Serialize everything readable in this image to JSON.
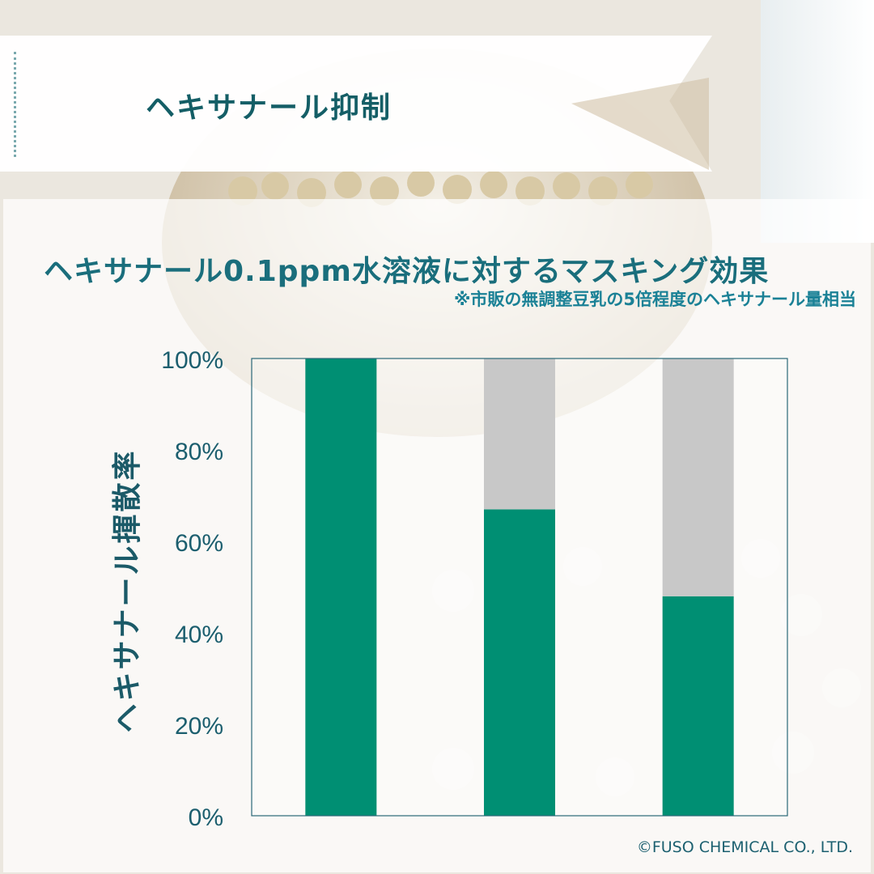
{
  "header": {
    "title": "ヘキサナール抑制"
  },
  "colors": {
    "accent": "#008f73",
    "remainder": "#c8c8c8",
    "title": "#1a6e7c",
    "frame": "#2a6878"
  },
  "chart_data": {
    "type": "bar",
    "stacked": true,
    "title": "ヘキサナール0.1ppm水溶液に対するマスキング効果",
    "subtitle": "※市販の無調整豆乳の5倍程度のヘキサナール量相当",
    "ylabel": "ヘキサナール揮散率",
    "xlabel": "",
    "categories": [
      "",
      "",
      ""
    ],
    "ylim": [
      0,
      100
    ],
    "yticks": [
      "0%",
      "20%",
      "40%",
      "60%",
      "80%",
      "100%"
    ],
    "series": [
      {
        "values": [
          100,
          67,
          48
        ]
      },
      {
        "values": [
          0,
          33,
          52
        ]
      }
    ],
    "grid": false,
    "legend": "none"
  },
  "footer": {
    "copyright": "©FUSO CHEMICAL CO., LTD."
  }
}
